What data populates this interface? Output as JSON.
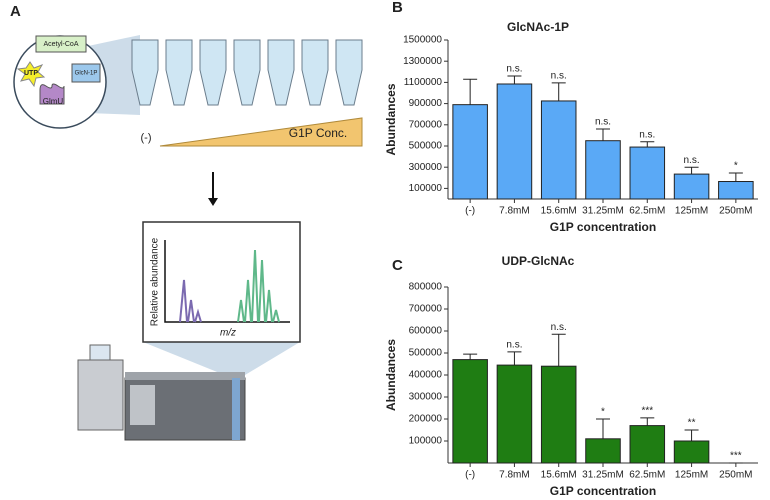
{
  "panel_a": {
    "label": "A",
    "acetyl": "Acetyl-CoA",
    "utp": "UTP",
    "glcn": "GlcN-1P",
    "glmu": "GlmU",
    "neg": "(-)",
    "conc": "G1P Conc.",
    "spec_y": "Relative abundance",
    "spec_x": "m/z"
  },
  "chart_data": [
    {
      "type": "bar",
      "panel_label": "B",
      "title": "GlcNAc-1P",
      "x_label": "G1P concentration",
      "y_label": "Abundances",
      "categories": [
        "(-)",
        "7.8mM",
        "15.6mM",
        "31.25mM",
        "62.5mM",
        "125mM",
        "250mM"
      ],
      "values": [
        890000,
        1085000,
        925000,
        550000,
        490000,
        235000,
        165000
      ],
      "errors": [
        240000,
        75000,
        170000,
        110000,
        50000,
        65000,
        80000
      ],
      "annotations": [
        null,
        "n.s.",
        "n.s.",
        "n.s.",
        "n.s.",
        "n.s.",
        "*"
      ],
      "color": "#5aa9f6",
      "ylim": [
        0,
        1500000
      ],
      "yticks": [
        100000,
        300000,
        500000,
        700000,
        900000,
        1100000,
        1300000,
        1500000
      ]
    },
    {
      "type": "bar",
      "panel_label": "C",
      "title": "UDP-GlcNAc",
      "x_label": "G1P concentration",
      "y_label": "Abundances",
      "categories": [
        "(-)",
        "7.8mM",
        "15.6mM",
        "31.25mM",
        "62.5mM",
        "125mM",
        "250mM"
      ],
      "values": [
        470000,
        445000,
        440000,
        110000,
        170000,
        100000,
        0
      ],
      "errors": [
        25000,
        60000,
        145000,
        90000,
        35000,
        50000,
        0
      ],
      "annotations": [
        null,
        "n.s.",
        "n.s.",
        "*",
        "***",
        "**",
        "***"
      ],
      "color": "#1f7d13",
      "ylim": [
        0,
        800000
      ],
      "yticks": [
        100000,
        200000,
        300000,
        400000,
        500000,
        600000,
        700000,
        800000
      ]
    }
  ]
}
